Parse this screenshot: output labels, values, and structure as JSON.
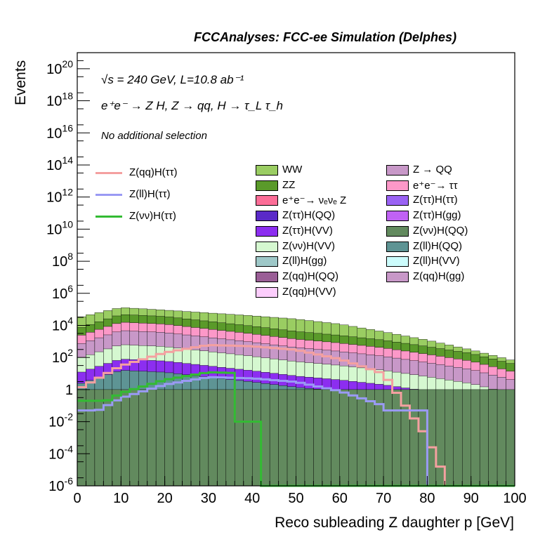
{
  "header": {
    "title": "FCCAnalyses: FCC-ee Simulation (Delphes)"
  },
  "annotations": {
    "energy_line": "√s = 240 GeV, L=10.8 ab⁻¹",
    "process_line": "e⁺e⁻ → Z H, Z → qq, H → τ_L τ_h",
    "selection_line": "No additional selection"
  },
  "chart_data": {
    "type": "histogram",
    "title": "FCCAnalyses: FCC-ee Simulation (Delphes)",
    "xlabel": "Reco subleading Z daughter p [GeV]",
    "ylabel": "Events",
    "xlim": [
      0,
      100
    ],
    "ylim": [
      1e-06,
      1e+21
    ],
    "yscale": "log",
    "bin_width": 2,
    "x_ticks": [
      0,
      10,
      20,
      30,
      40,
      50,
      60,
      70,
      80,
      90,
      100
    ],
    "y_ticks": [
      "10^-6",
      "10^-4",
      "10^-2",
      "1",
      "10^2",
      "10^4",
      "10^6",
      "10^8",
      "10^10",
      "10^12",
      "10^14",
      "10^16",
      "10^18",
      "10^20"
    ],
    "legend_lines": [
      {
        "name": "Z(qq)H(ττ)",
        "color": "#f4a0a0"
      },
      {
        "name": "Z(ll)H(ττ)",
        "color": "#9a9af4"
      },
      {
        "name": "Z(νν)H(ττ)",
        "color": "#33bb33"
      }
    ],
    "legend_stack_col1": [
      {
        "name": "WW",
        "color": "#9acd62"
      },
      {
        "name": "ZZ",
        "color": "#5a9a2a"
      },
      {
        "name": "e⁺e⁻→ νₑνₑ Z",
        "color": "#fc6d97"
      },
      {
        "name": "Z(ττ)H(QQ)",
        "color": "#5a2ac8"
      },
      {
        "name": "Z(ττ)H(VV)",
        "color": "#8c2ef0"
      },
      {
        "name": "Z(νν)H(VV)",
        "color": "#d5f8d0"
      },
      {
        "name": "Z(ll)H(gg)",
        "color": "#9ec8c8"
      },
      {
        "name": "Z(qq)H(QQ)",
        "color": "#9a5e96"
      },
      {
        "name": "Z(qq)H(VV)",
        "color": "#fccdfc"
      }
    ],
    "legend_stack_col2": [
      {
        "name": "Z → QQ",
        "color": "#c898c8"
      },
      {
        "name": "e⁺e⁻→ ττ",
        "color": "#fc98c8"
      },
      {
        "name": "Z(ττ)H(ττ)",
        "color": "#9a62f4"
      },
      {
        "name": "Z(ττ)H(gg)",
        "color": "#c062f4"
      },
      {
        "name": "Z(νν)H(QQ)",
        "color": "#628a5e"
      },
      {
        "name": "Z(ll)H(QQ)",
        "color": "#5e9494"
      },
      {
        "name": "Z(ll)H(VV)",
        "color": "#ccfcfc"
      },
      {
        "name": "Z(qq)H(gg)",
        "color": "#c898c8"
      }
    ],
    "stack_totals_approx": [
      {
        "name": "WW (total stack top)",
        "x": [
          0,
          10,
          20,
          30,
          40,
          50,
          60,
          70,
          80,
          90,
          100
        ],
        "values": [
          30000,
          130000,
          90000,
          60000,
          40000,
          25000,
          12000,
          4000,
          1200,
          300,
          60
        ]
      },
      {
        "name": "ZZ",
        "x": [
          0,
          10,
          20,
          30,
          40,
          50,
          60,
          70,
          80,
          90,
          100
        ],
        "values": [
          1000,
          8000,
          6000,
          3000,
          1500,
          700,
          400,
          200,
          80,
          30,
          6
        ]
      },
      {
        "name": "Z(qq)H(ττ)",
        "x": [
          0,
          10,
          20,
          30,
          40,
          50,
          60,
          70,
          80,
          90,
          100
        ],
        "values": [
          1,
          30,
          200,
          600,
          500,
          300,
          80,
          10,
          0.001,
          0,
          0
        ]
      }
    ]
  },
  "colors": {
    "axis": "#000000",
    "qqH_line": "#f4a0a0",
    "llH_line": "#9a9af4",
    "nnH_line": "#33bb33"
  }
}
